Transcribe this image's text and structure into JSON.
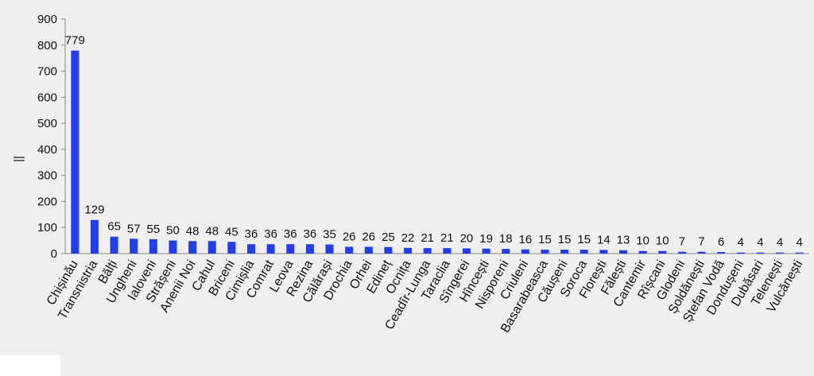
{
  "chart_data": {
    "type": "bar",
    "y_label": "||",
    "categories": [
      "Chișinău",
      "Transnistria",
      "Bălți",
      "Ungheni",
      "Ialoveni",
      "Strășeni",
      "Anenii Noi",
      "Cahul",
      "Briceni",
      "Cimișlia",
      "Comrat",
      "Leova",
      "Rezina",
      "Călărași",
      "Drochia",
      "Orhei",
      "Edineț",
      "Ocnița",
      "Ceadîr-Lunga",
      "Taraclia",
      "Sîngerei",
      "Hîncești",
      "Nisporeni",
      "Criuleni",
      "Basarabeasca",
      "Căușeni",
      "Soroca",
      "Florești",
      "Fălești",
      "Cantemir",
      "Rîșcani",
      "Glodeni",
      "Șoldănești",
      "Ștefan Vodă",
      "Dondușeni",
      "Dubăsari",
      "Telenești",
      "Vulcănești"
    ],
    "values": [
      779,
      129,
      65,
      57,
      55,
      50,
      48,
      48,
      45,
      36,
      36,
      36,
      36,
      35,
      26,
      26,
      25,
      22,
      21,
      21,
      20,
      19,
      18,
      16,
      15,
      15,
      15,
      14,
      13,
      10,
      10,
      7,
      7,
      6,
      4,
      4,
      4,
      4
    ],
    "color": "#1f3ef5",
    "ylim": [
      0,
      900
    ],
    "yticks": [
      0,
      100,
      200,
      300,
      400,
      500,
      600,
      700,
      800,
      900
    ],
    "grid": false
  }
}
